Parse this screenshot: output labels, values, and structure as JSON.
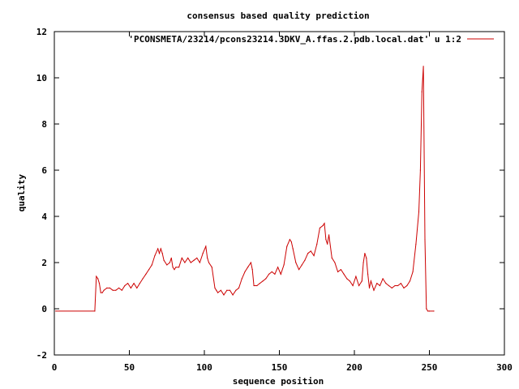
{
  "chart_data": {
    "type": "line",
    "title": "consensus based quality prediction",
    "xlabel": "sequence position",
    "ylabel": "quality",
    "xlim": [
      0,
      300
    ],
    "ylim": [
      -2,
      12
    ],
    "xticks": [
      "0",
      "50",
      "100",
      "150",
      "200",
      "250",
      "300"
    ],
    "yticks": [
      "-2",
      "0",
      "2",
      "4",
      "6",
      "8",
      "10",
      "12"
    ],
    "grid": false,
    "legend_position": "top-right",
    "series": [
      {
        "name": "'PCONSMETA/23214/pcons23214.3DKV_A.ffas.2.pdb.local.dat' u 1:2",
        "color": "#cc0000",
        "x": [
          1,
          27,
          28,
          29,
          30,
          31,
          32,
          33,
          35,
          37,
          39,
          41,
          43,
          45,
          47,
          49,
          51,
          53,
          55,
          57,
          59,
          61,
          63,
          65,
          67,
          69,
          70,
          71,
          72,
          73,
          75,
          77,
          78,
          79,
          80,
          81,
          83,
          85,
          87,
          89,
          91,
          93,
          95,
          97,
          99,
          101,
          102,
          103,
          105,
          107,
          108,
          109,
          111,
          113,
          115,
          117,
          119,
          121,
          123,
          125,
          127,
          129,
          131,
          132,
          133,
          135,
          137,
          139,
          141,
          143,
          145,
          147,
          149,
          151,
          153,
          155,
          157,
          158,
          159,
          161,
          163,
          165,
          167,
          169,
          171,
          173,
          175,
          177,
          179,
          180,
          181,
          182,
          183,
          185,
          187,
          189,
          191,
          193,
          195,
          197,
          199,
          201,
          203,
          205,
          206,
          207,
          208,
          209,
          210,
          211,
          213,
          215,
          217,
          219,
          221,
          223,
          225,
          227,
          229,
          231,
          233,
          235,
          237,
          239,
          241,
          243,
          244,
          245,
          246,
          247,
          248,
          249,
          250,
          253
        ],
        "y": [
          -0.1,
          -0.1,
          1.4,
          1.3,
          1.1,
          0.7,
          0.7,
          0.8,
          0.9,
          0.9,
          0.8,
          0.8,
          0.9,
          0.8,
          1.0,
          1.1,
          0.9,
          1.1,
          0.9,
          1.1,
          1.3,
          1.5,
          1.7,
          1.9,
          2.3,
          2.6,
          2.4,
          2.6,
          2.4,
          2.1,
          1.9,
          2.0,
          2.2,
          1.8,
          1.7,
          1.8,
          1.8,
          2.2,
          2.0,
          2.2,
          2.0,
          2.1,
          2.2,
          2.0,
          2.4,
          2.7,
          2.2,
          2.0,
          1.8,
          0.9,
          0.8,
          0.7,
          0.8,
          0.6,
          0.8,
          0.8,
          0.6,
          0.8,
          0.9,
          1.3,
          1.6,
          1.8,
          2.0,
          1.7,
          1.0,
          1.0,
          1.1,
          1.2,
          1.3,
          1.5,
          1.6,
          1.5,
          1.8,
          1.5,
          1.9,
          2.7,
          3.0,
          2.9,
          2.6,
          2.0,
          1.7,
          1.9,
          2.1,
          2.4,
          2.5,
          2.3,
          2.8,
          3.5,
          3.6,
          3.7,
          3.0,
          2.8,
          3.2,
          2.2,
          2.0,
          1.6,
          1.7,
          1.5,
          1.3,
          1.2,
          1.0,
          1.4,
          1.0,
          1.2,
          2.0,
          2.4,
          2.2,
          1.5,
          0.9,
          1.2,
          0.8,
          1.1,
          1.0,
          1.3,
          1.1,
          1.0,
          0.9,
          1.0,
          1.0,
          1.1,
          0.9,
          1.0,
          1.2,
          1.6,
          2.8,
          4.2,
          6.0,
          9.4,
          10.5,
          3.0,
          0.0,
          -0.1,
          -0.1,
          -0.1
        ]
      }
    ]
  }
}
